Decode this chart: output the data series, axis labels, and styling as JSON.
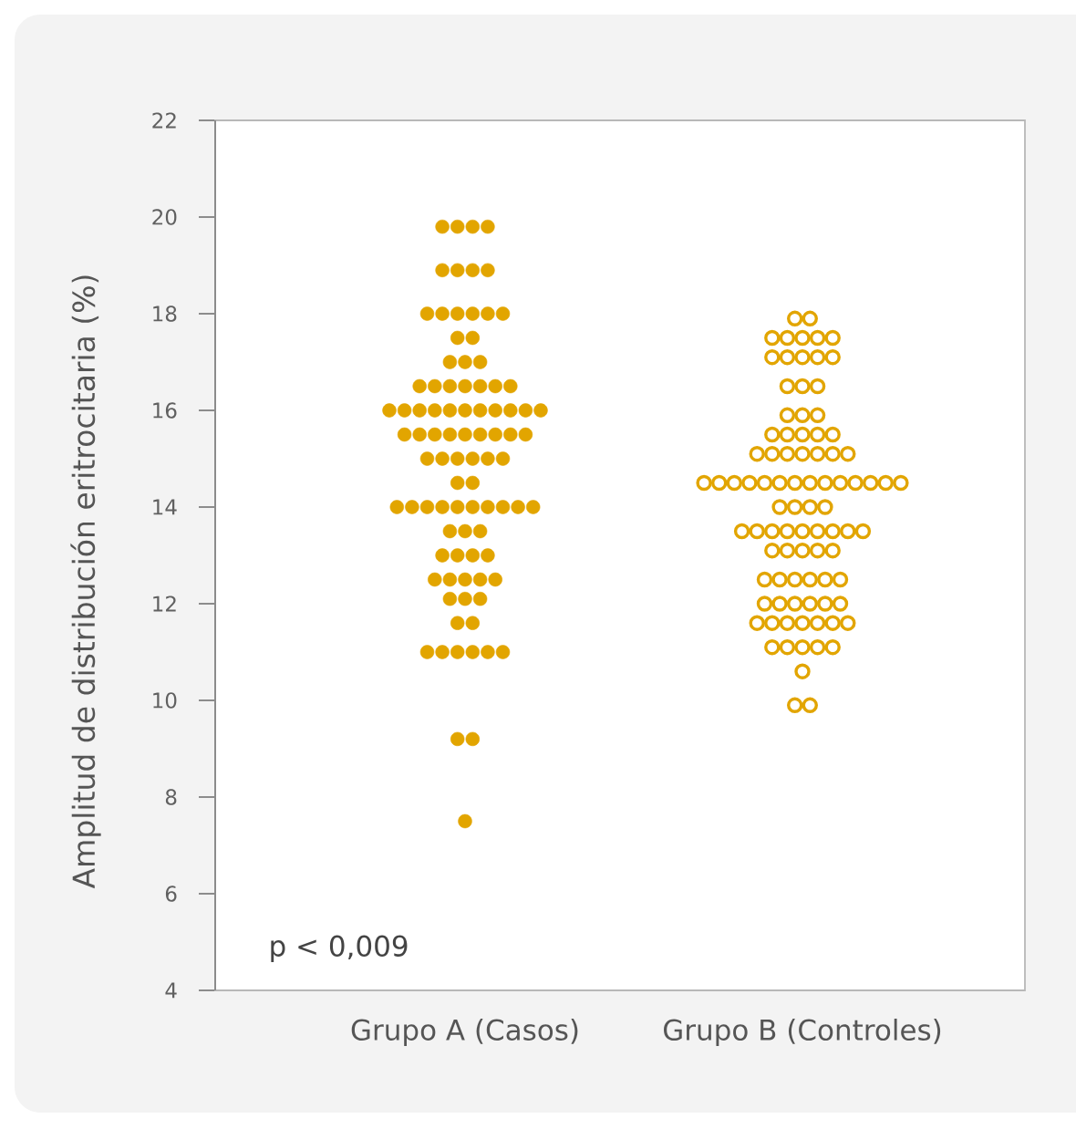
{
  "chart_data": {
    "type": "scatter",
    "ylabel": "Amplitud de distribución eritrocitaria (%)",
    "categories": [
      "Grupo A (Casos)",
      "Grupo B (Controles)"
    ],
    "ylim": [
      4,
      22
    ],
    "yticks": [
      4,
      6,
      8,
      10,
      12,
      14,
      16,
      18,
      20,
      22
    ],
    "marker": "circle",
    "annotations": [
      "p < 0,009"
    ],
    "series": [
      {
        "color": "#e2a500",
        "x": [
          "Grupo A (Casos)",
          "Grupo A (Casos)",
          "Grupo A (Casos)",
          "Grupo A (Casos)",
          "Grupo A (Casos)",
          "Grupo A (Casos)",
          "Grupo A (Casos)",
          "Grupo A (Casos)",
          "Grupo A (Casos)",
          "Grupo A (Casos)",
          "Grupo A (Casos)",
          "Grupo A (Casos)",
          "Grupo A (Casos)",
          "Grupo A (Casos)",
          "Grupo A (Casos)",
          "Grupo A (Casos)",
          "Grupo A (Casos)",
          "Grupo A (Casos)",
          "Grupo A (Casos)",
          "Grupo A (Casos)",
          "Grupo A (Casos)",
          "Grupo A (Casos)",
          "Grupo A (Casos)",
          "Grupo A (Casos)",
          "Grupo A (Casos)",
          "Grupo A (Casos)",
          "Grupo A (Casos)",
          "Grupo A (Casos)",
          "Grupo A (Casos)",
          "Grupo A (Casos)",
          "Grupo A (Casos)",
          "Grupo A (Casos)",
          "Grupo A (Casos)",
          "Grupo A (Casos)",
          "Grupo A (Casos)",
          "Grupo A (Casos)",
          "Grupo A (Casos)",
          "Grupo A (Casos)",
          "Grupo A (Casos)",
          "Grupo A (Casos)",
          "Grupo A (Casos)",
          "Grupo A (Casos)",
          "Grupo A (Casos)",
          "Grupo A (Casos)",
          "Grupo A (Casos)",
          "Grupo A (Casos)",
          "Grupo A (Casos)",
          "Grupo A (Casos)",
          "Grupo A (Casos)",
          "Grupo A (Casos)",
          "Grupo A (Casos)",
          "Grupo A (Casos)",
          "Grupo A (Casos)",
          "Grupo A (Casos)",
          "Grupo A (Casos)",
          "Grupo A (Casos)",
          "Grupo A (Casos)",
          "Grupo A (Casos)",
          "Grupo A (Casos)",
          "Grupo A (Casos)",
          "Grupo A (Casos)",
          "Grupo A (Casos)",
          "Grupo A (Casos)",
          "Grupo A (Casos)",
          "Grupo A (Casos)",
          "Grupo A (Casos)",
          "Grupo A (Casos)",
          "Grupo A (Casos)",
          "Grupo A (Casos)",
          "Grupo A (Casos)",
          "Grupo A (Casos)",
          "Grupo A (Casos)",
          "Grupo A (Casos)",
          "Grupo A (Casos)",
          "Grupo A (Casos)",
          "Grupo A (Casos)",
          "Grupo A (Casos)",
          "Grupo A (Casos)",
          "Grupo A (Casos)",
          "Grupo A (Casos)",
          "Grupo A (Casos)",
          "Grupo A (Casos)",
          "Grupo A (Casos)",
          "Grupo A (Casos)",
          "Grupo A (Casos)",
          "Grupo A (Casos)",
          "Grupo A (Casos)",
          "Grupo A (Casos)",
          "Grupo A (Casos)",
          "Grupo A (Casos)"
        ],
        "values": [
          19.8,
          19.8,
          19.8,
          19.8,
          18.9,
          18.9,
          18.9,
          18.9,
          18.0,
          18.0,
          18.0,
          18.0,
          18.0,
          18.0,
          17.5,
          17.5,
          17.0,
          17.0,
          17.0,
          16.5,
          16.5,
          16.5,
          16.5,
          16.5,
          16.5,
          16.5,
          16.0,
          16.0,
          16.0,
          16.0,
          16.0,
          16.0,
          16.0,
          16.0,
          16.0,
          16.0,
          16.0,
          15.5,
          15.5,
          15.5,
          15.5,
          15.5,
          15.5,
          15.5,
          15.5,
          15.5,
          15.0,
          15.0,
          15.0,
          15.0,
          15.0,
          15.0,
          14.5,
          14.5,
          14.0,
          14.0,
          14.0,
          14.0,
          14.0,
          14.0,
          14.0,
          14.0,
          14.0,
          14.0,
          13.5,
          13.5,
          13.5,
          13.0,
          13.0,
          13.0,
          13.0,
          12.5,
          12.5,
          12.5,
          12.5,
          12.5,
          12.1,
          12.1,
          12.1,
          11.6,
          11.6,
          11.0,
          11.0,
          11.0,
          11.0,
          11.0,
          11.0,
          9.2,
          9.2,
          7.5
        ]
      },
      {
        "color": "#e2a500",
        "x": [
          "Grupo B (Controles)",
          "Grupo B (Controles)",
          "Grupo B (Controles)",
          "Grupo B (Controles)",
          "Grupo B (Controles)",
          "Grupo B (Controles)",
          "Grupo B (Controles)",
          "Grupo B (Controles)",
          "Grupo B (Controles)",
          "Grupo B (Controles)",
          "Grupo B (Controles)",
          "Grupo B (Controles)",
          "Grupo B (Controles)",
          "Grupo B (Controles)",
          "Grupo B (Controles)",
          "Grupo B (Controles)",
          "Grupo B (Controles)",
          "Grupo B (Controles)",
          "Grupo B (Controles)",
          "Grupo B (Controles)",
          "Grupo B (Controles)",
          "Grupo B (Controles)",
          "Grupo B (Controles)",
          "Grupo B (Controles)",
          "Grupo B (Controles)",
          "Grupo B (Controles)",
          "Grupo B (Controles)",
          "Grupo B (Controles)",
          "Grupo B (Controles)",
          "Grupo B (Controles)",
          "Grupo B (Controles)",
          "Grupo B (Controles)",
          "Grupo B (Controles)",
          "Grupo B (Controles)",
          "Grupo B (Controles)",
          "Grupo B (Controles)",
          "Grupo B (Controles)",
          "Grupo B (Controles)",
          "Grupo B (Controles)",
          "Grupo B (Controles)",
          "Grupo B (Controles)",
          "Grupo B (Controles)",
          "Grupo B (Controles)",
          "Grupo B (Controles)",
          "Grupo B (Controles)",
          "Grupo B (Controles)",
          "Grupo B (Controles)",
          "Grupo B (Controles)",
          "Grupo B (Controles)",
          "Grupo B (Controles)",
          "Grupo B (Controles)",
          "Grupo B (Controles)",
          "Grupo B (Controles)",
          "Grupo B (Controles)",
          "Grupo B (Controles)",
          "Grupo B (Controles)",
          "Grupo B (Controles)",
          "Grupo B (Controles)",
          "Grupo B (Controles)",
          "Grupo B (Controles)",
          "Grupo B (Controles)",
          "Grupo B (Controles)",
          "Grupo B (Controles)",
          "Grupo B (Controles)",
          "Grupo B (Controles)",
          "Grupo B (Controles)",
          "Grupo B (Controles)",
          "Grupo B (Controles)",
          "Grupo B (Controles)",
          "Grupo B (Controles)",
          "Grupo B (Controles)",
          "Grupo B (Controles)",
          "Grupo B (Controles)",
          "Grupo B (Controles)",
          "Grupo B (Controles)",
          "Grupo B (Controles)",
          "Grupo B (Controles)",
          "Grupo B (Controles)",
          "Grupo B (Controles)",
          "Grupo B (Controles)",
          "Grupo B (Controles)",
          "Grupo B (Controles)",
          "Grupo B (Controles)",
          "Grupo B (Controles)",
          "Grupo B (Controles)",
          "Grupo B (Controles)",
          "Grupo B (Controles)",
          "Grupo B (Controles)",
          "Grupo B (Controles)"
        ],
        "values": [
          17.9,
          17.9,
          17.5,
          17.5,
          17.5,
          17.5,
          17.5,
          17.1,
          17.1,
          17.1,
          17.1,
          17.1,
          16.5,
          16.5,
          16.5,
          15.9,
          15.9,
          15.9,
          15.5,
          15.5,
          15.5,
          15.5,
          15.5,
          15.1,
          15.1,
          15.1,
          15.1,
          15.1,
          15.1,
          15.1,
          14.5,
          14.5,
          14.5,
          14.5,
          14.5,
          14.5,
          14.5,
          14.5,
          14.5,
          14.5,
          14.5,
          14.5,
          14.5,
          14.5,
          14.0,
          14.0,
          14.0,
          14.0,
          13.5,
          13.5,
          13.5,
          13.5,
          13.5,
          13.5,
          13.5,
          13.5,
          13.5,
          13.1,
          13.1,
          13.1,
          13.1,
          13.1,
          12.5,
          12.5,
          12.5,
          12.5,
          12.5,
          12.5,
          12.0,
          12.0,
          12.0,
          12.0,
          12.0,
          12.0,
          11.6,
          11.6,
          11.6,
          11.6,
          11.6,
          11.6,
          11.6,
          11.1,
          11.1,
          11.1,
          11.1,
          11.1,
          10.6,
          9.9,
          9.9
        ]
      }
    ]
  }
}
